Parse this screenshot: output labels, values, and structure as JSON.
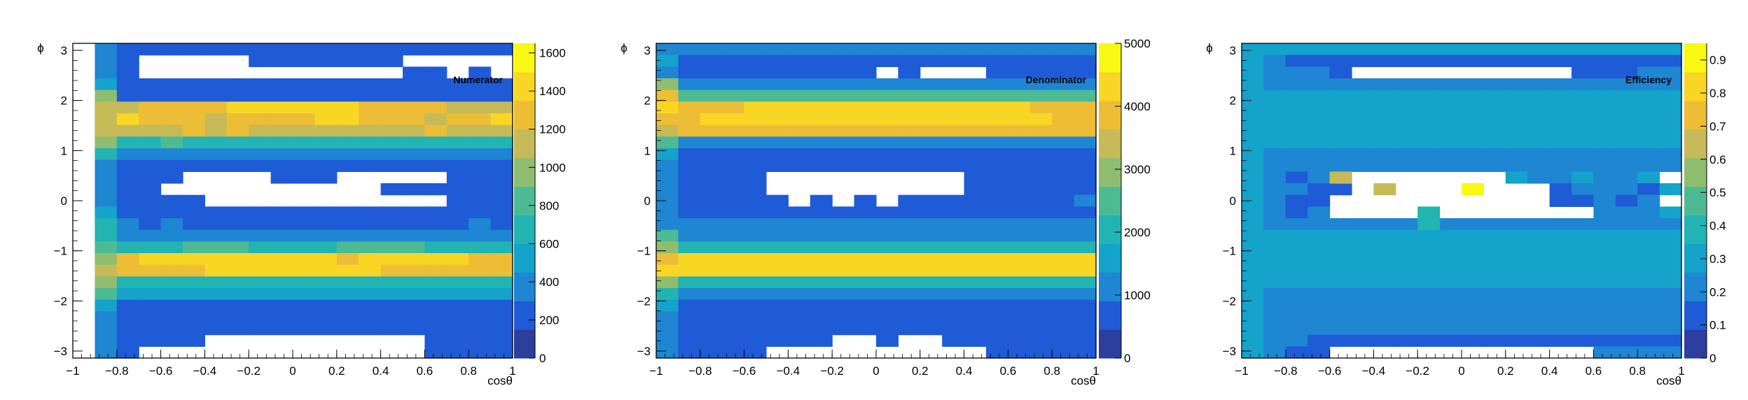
{
  "palette": [
    "#2c3e9e",
    "#1f5bd6",
    "#1e86d2",
    "#13a3cb",
    "#22b3b3",
    "#4cbb94",
    "#8fbd6f",
    "#c5ba57",
    "#ecbd35",
    "#f9d623",
    "#f8f812"
  ],
  "chart_data": [
    {
      "type": "heatmap",
      "title": "Numerator",
      "xlabel": "cosθ",
      "ylabel": "ϕ",
      "xlim": [
        -1,
        1
      ],
      "ylim": [
        -3.14,
        3.14
      ],
      "x_ticks": [
        "−1",
        "−0.8",
        "−0.6",
        "−0.4",
        "−0.2",
        "0",
        "0.2",
        "0.4",
        "0.6",
        "0.8",
        "1"
      ],
      "y_ticks": [
        "−3",
        "−2",
        "−1",
        "0",
        "1",
        "2",
        "3"
      ],
      "z_range": [
        0,
        1650
      ],
      "z_ticks": [
        "0",
        "200",
        "400",
        "600",
        "800",
        "1000",
        "1200",
        "1400",
        "1600"
      ],
      "rows": [
        ".211111111111111111132",
        ".21.....1111111.....12",
        ".21............11.1.22",
        ".31111111111111111112",
        ".611111111111111111136",
        ".77888899999988887777",
        ".79888788889988878897",
        ".7777878777777778777",
        ".6445444444444444444447",
        ".4222222222222222222224",
        ".2111111111111111111113",
        ".2111....111.....11112",
        ".211..........11111112",
        ".21111...........1112",
        ".31111111111111111113",
        ".42121111111111111212",
        ".4222222222222222222224",
        ".5444555444455554444444",
        ".6899999999989999988875",
        ".7888899999999888888887",
        ".6444444444444444444446",
        ".5333333333333333333335",
        ".3111111111111111111115",
        ".2111111111111111111112",
        ".211111111111111111112",
        ".21111..........111112",
        ".21.............11112"
      ]
    },
    {
      "type": "heatmap",
      "title": "Denominator",
      "xlabel": "cosθ",
      "ylabel": "ϕ",
      "xlim": [
        -1,
        1
      ],
      "ylim": [
        -3.14,
        3.14
      ],
      "x_ticks": [
        "−1",
        "−0.8",
        "−0.6",
        "−0.4",
        "−0.2",
        "0",
        "0.2",
        "0.4",
        "0.6",
        "0.8",
        "1"
      ],
      "y_ticks": [
        "−3",
        "−2",
        "−1",
        "0",
        "1",
        "2",
        "3"
      ],
      "z_range": [
        0,
        5000
      ],
      "z_ticks": [
        "0",
        "1000",
        "2000",
        "3000",
        "4000",
        "5000"
      ],
      "rows": [
        "22222222222222222222",
        "3111111111111111111113",
        "2111111111.1...11111122",
        "6222222222222222222226",
        "8555555555555555555558",
        "9888999999999999988889",
        "8899999999999999998899",
        "7888888888888888888887",
        "5222222222222222222225",
        "3111111111111111111113",
        "2111111111111111111112",
        "21111.........1111112",
        "21111.........1111112",
        "211111.1.1.111111112",
        "2111111111111111111112",
        "2222222222222222222222",
        "5222222222222222222225",
        "6444444444444444444446",
        "8999999999999999999998",
        "9999999999999999999999",
        "6444444444444444444446",
        "4222222222222222222224",
        "3111111111111111111113",
        "2111111111111111111112",
        "2111111111111111111112",
        "21111111..1..11111112",
        "21111..........111112"
      ]
    },
    {
      "type": "heatmap",
      "title": "Efficiency",
      "xlabel": "cosθ",
      "ylabel": "ϕ",
      "xlim": [
        -1,
        1
      ],
      "ylim": [
        -3.14,
        3.14
      ],
      "x_ticks": [
        "−1",
        "−0.8",
        "−0.6",
        "−0.4",
        "−0.2",
        "0",
        "0.2",
        "0.4",
        "0.6",
        "0.8",
        "1"
      ],
      "y_ticks": [
        "−3",
        "−2",
        "−1",
        "0",
        "1",
        "2",
        "3"
      ],
      "z_range": [
        0,
        0.95
      ],
      "z_ticks": [
        "0",
        "0.1",
        "0.2",
        "0.3",
        "0.4",
        "0.5",
        "0.6",
        "0.7",
        "0.8",
        "0.9"
      ],
      "rows": [
        "3333333333333333333333",
        "3211111111111111111123",
        "32221..........1112223",
        "3222222222222222222223",
        "3333333333333333333333",
        "3333333333333333333333",
        "3333333333333333333333",
        "3333333333333333333333",
        "3333333333333333333333",
        "3222222222222222222223",
        "3222222222222222222223",
        "32122.......3223223",
        "32211.........122213",
        "3211..........11212",
        "3212............2223",
        "3222222222222222222223",
        "3333333333333333333333",
        "3333333333333333333333",
        "3333333333333333333333",
        "3333333333333333333333",
        "3333333333333333333333",
        "3222222222222222222223",
        "3222222222222222222223",
        "32222222222222222222",
        "322222222222222222222",
        "3221111111111111111123",
        "3211............2222223"
      ],
      "highlights": [
        {
          "row": 11,
          "col": 4,
          "level": 7
        },
        {
          "row": 12,
          "col": 6,
          "level": 7
        },
        {
          "row": 12,
          "col": 10,
          "level": 10
        },
        {
          "row": 14,
          "col": 8,
          "level": 4
        },
        {
          "row": 15,
          "col": 8,
          "level": 4
        }
      ]
    }
  ]
}
